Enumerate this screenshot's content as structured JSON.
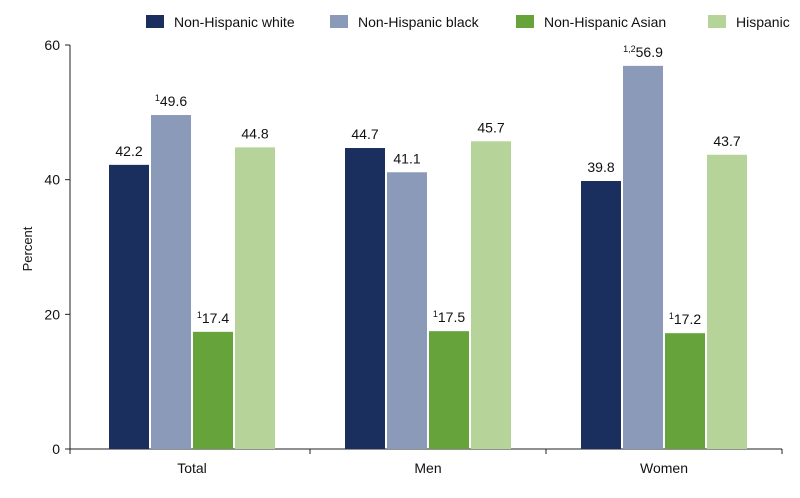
{
  "chart_data": {
    "type": "bar",
    "ylabel": "Percent",
    "xlabel": "",
    "title": "",
    "ylim": [
      0,
      60
    ],
    "yticks": [
      0,
      20,
      40,
      60
    ],
    "grid": false,
    "legend_position": "top",
    "categories": [
      "Total",
      "Men",
      "Women"
    ],
    "series": [
      {
        "name": "Non-Hispanic white",
        "color": "#1a2f5e",
        "values": [
          42.2,
          44.7,
          39.8
        ],
        "labels": [
          "42.2",
          "44.7",
          "39.8"
        ],
        "superscripts": [
          "",
          "",
          ""
        ]
      },
      {
        "name": "Non-Hispanic black",
        "color": "#8a9ab8",
        "values": [
          49.6,
          41.1,
          56.9
        ],
        "labels": [
          "49.6",
          "41.1",
          "56.9"
        ],
        "superscripts": [
          "1",
          "",
          "1,2"
        ]
      },
      {
        "name": "Non-Hispanic Asian",
        "color": "#66a33b",
        "values": [
          17.4,
          17.5,
          17.2
        ],
        "labels": [
          "17.4",
          "17.5",
          "17.2"
        ],
        "superscripts": [
          "1",
          "1",
          "1"
        ]
      },
      {
        "name": "Hispanic",
        "color": "#b6d49a",
        "values": [
          44.8,
          45.7,
          43.7
        ],
        "labels": [
          "44.8",
          "45.7",
          "43.7"
        ],
        "superscripts": [
          "",
          "",
          ""
        ]
      }
    ]
  }
}
